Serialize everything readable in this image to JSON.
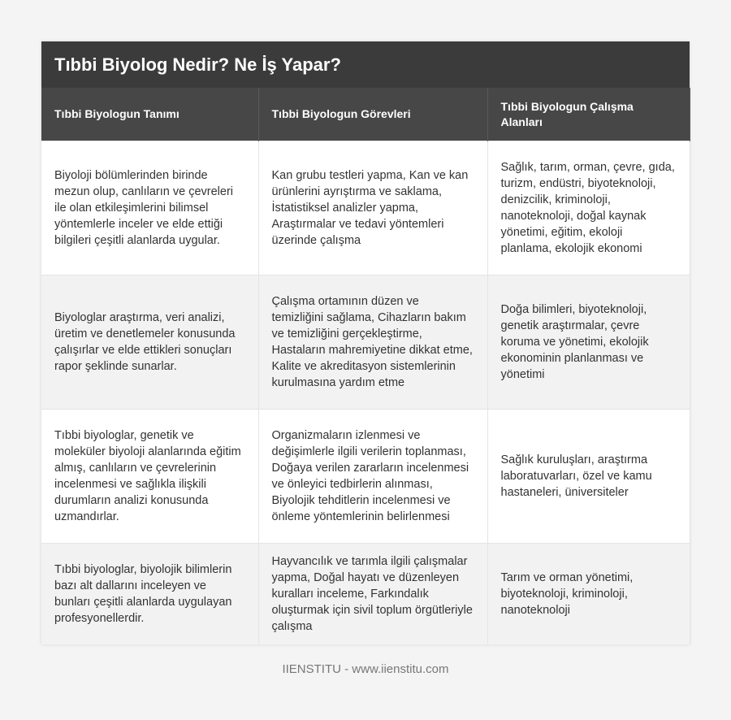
{
  "header": {
    "title": "Tıbbi Biyolog Nedir? Ne İş Yapar?"
  },
  "table": {
    "columns": [
      "Tıbbi Biyologun Tanımı",
      "Tıbbi Biyologun Görevleri",
      "Tıbbi Biyologun Çalışma Alanları"
    ],
    "rows": [
      [
        "Biyoloji bölümlerinden birinde mezun olup, canlıların ve çevreleri ile olan etkileşimlerini bilimsel yöntemlerle inceler ve elde ettiği bilgileri çeşitli alanlarda uygular.",
        "Kan grubu testleri yapma, Kan ve kan ürünlerini ayrıştırma ve saklama, İstatistiksel analizler yapma, Araştırmalar ve tedavi yöntemleri üzerinde çalışma",
        "Sağlık, tarım, orman, çevre, gıda, turizm, endüstri, biyoteknoloji, denizcilik, kriminoloji, nanoteknoloji, doğal kaynak yönetimi, eğitim, ekoloji planlama, ekolojik ekonomi"
      ],
      [
        "Biyologlar araştırma, veri analizi, üretim ve denetlemeler konusunda çalışırlar ve elde ettikleri sonuçları rapor şeklinde sunarlar.",
        "Çalışma ortamının düzen ve temizliğini sağlama, Cihazların bakım ve temizliğini gerçekleştirme, Hastaların mahremiyetine dikkat etme, Kalite ve akreditasyon sistemlerinin kurulmasına yardım etme",
        "Doğa bilimleri, biyoteknoloji, genetik araştırmalar, çevre koruma ve yönetimi, ekolojik ekonominin planlanması ve yönetimi"
      ],
      [
        "Tıbbi biyologlar, genetik ve moleküler biyoloji alanlarında eğitim almış, canlıların ve çevrelerinin incelenmesi ve sağlıkla ilişkili durumların analizi konusunda uzmandırlar.",
        "Organizmaların izlenmesi ve değişimlerle ilgili verilerin toplanması, Doğaya verilen zararların incelenmesi ve önleyici tedbirlerin alınması, Biyolojik tehditlerin incelenmesi ve önleme yöntemlerinin belirlenmesi",
        "Sağlık kuruluşları, araştırma laboratuvarları, özel ve kamu hastaneleri, üniversiteler"
      ],
      [
        "Tıbbi biyologlar, biyolojik bilimlerin bazı alt dallarını inceleyen ve bunları çeşitli alanlarda uygulayan profesyonellerdir.",
        "Hayvancılık ve tarımla ilgili çalışmalar yapma, Doğal hayatı ve düzenleyen kuralları inceleme, Farkındalık oluşturmak için sivil toplum örgütleriyle çalışma",
        "Tarım ve orman yönetimi, biyoteknoloji, kriminoloji, nanoteknoloji"
      ]
    ]
  },
  "footer": {
    "text": "IIENSTITU - www.iienstitu.com"
  }
}
